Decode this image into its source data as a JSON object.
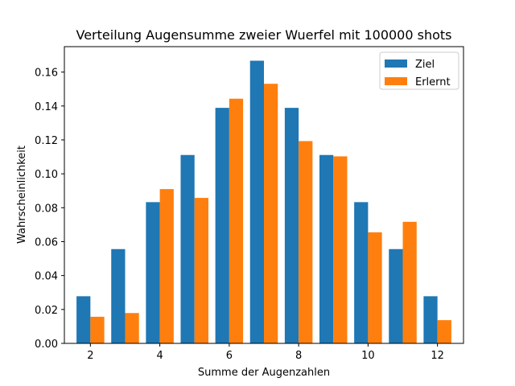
{
  "chart_data": {
    "type": "bar",
    "title": "Verteilung Augensumme zweier Wuerfel mit 100000 shots",
    "xlabel": "Summe der Augenzahlen",
    "ylabel": "Wahrscheinlichkeit",
    "categories": [
      2,
      3,
      4,
      5,
      6,
      7,
      8,
      9,
      10,
      11,
      12
    ],
    "series": [
      {
        "name": "Ziel",
        "color": "#1f77b4",
        "values": [
          0.0278,
          0.0556,
          0.0833,
          0.1111,
          0.1389,
          0.1667,
          0.1389,
          0.1111,
          0.0833,
          0.0556,
          0.0278
        ]
      },
      {
        "name": "Erlernt",
        "color": "#ff7f0e",
        "values": [
          0.0157,
          0.0179,
          0.091,
          0.0858,
          0.1443,
          0.1531,
          0.1193,
          0.1103,
          0.0655,
          0.0717,
          0.0137
        ]
      }
    ],
    "xlim": [
      1.25,
      12.75
    ],
    "ylim": [
      0,
      0.175
    ],
    "xticks": [
      2,
      4,
      6,
      8,
      10,
      12
    ],
    "xtick_labels": [
      "2",
      "4",
      "6",
      "8",
      "10",
      "12"
    ],
    "yticks": [
      0,
      0.02,
      0.04,
      0.06,
      0.08,
      0.1,
      0.12,
      0.14,
      0.16
    ],
    "ytick_labels": [
      "0.00",
      "0.02",
      "0.04",
      "0.06",
      "0.08",
      "0.10",
      "0.12",
      "0.14",
      "0.16"
    ],
    "grid": false,
    "legend_position": "top-right"
  }
}
